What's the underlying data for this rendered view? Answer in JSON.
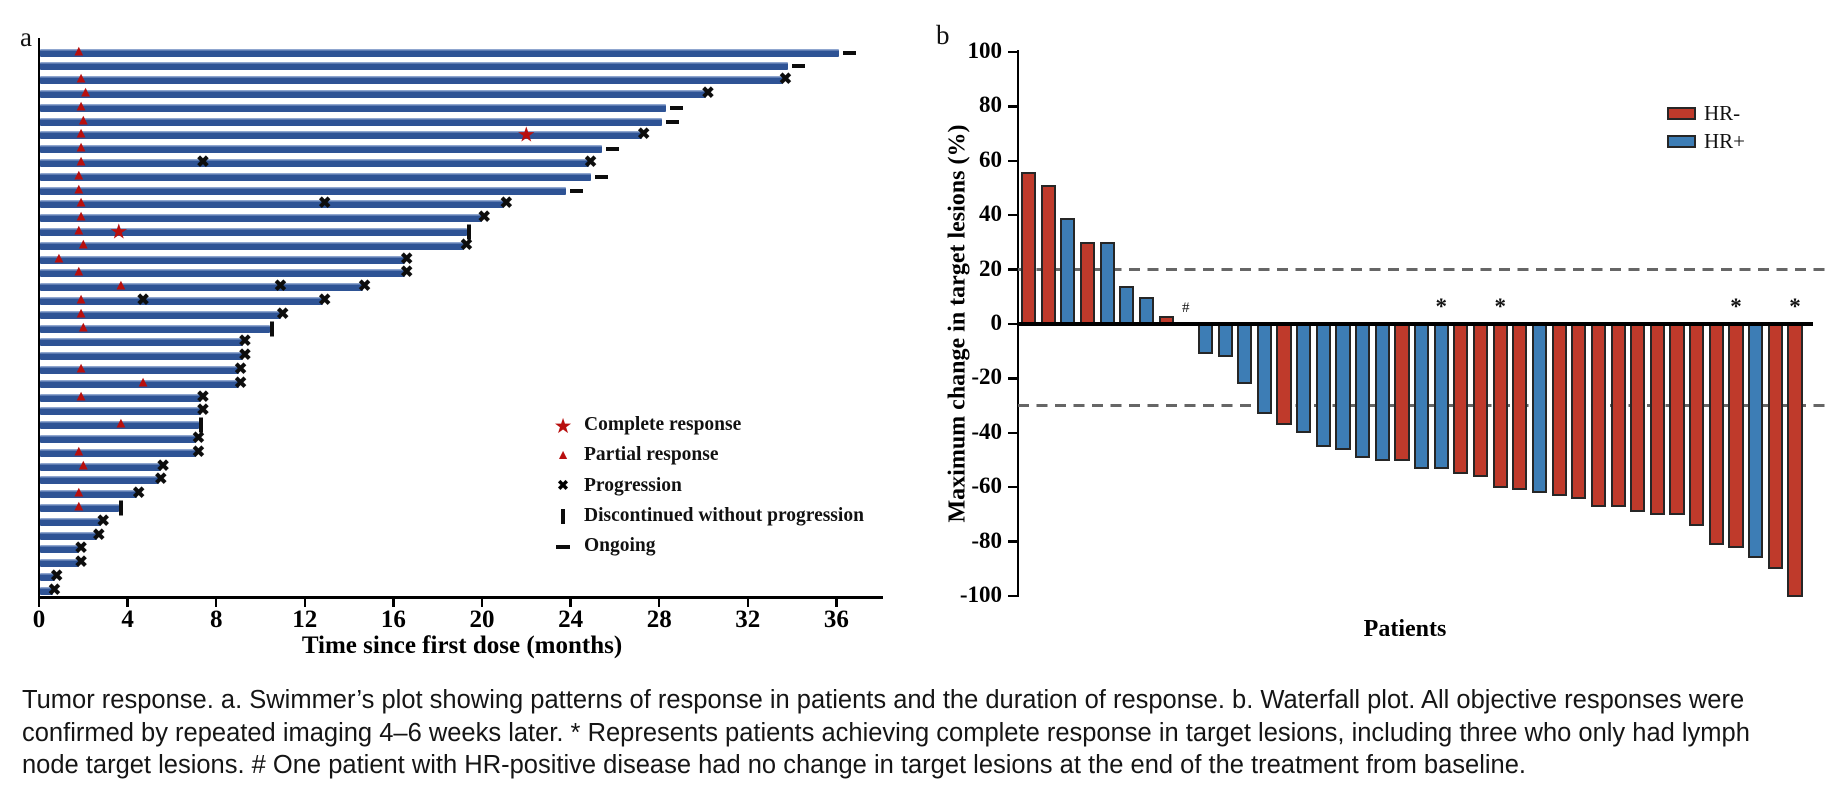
{
  "figure": {
    "panel_a_label": "a",
    "panel_b_label": "b"
  },
  "colors": {
    "swimmer_bar": "#2e5395",
    "swimmer_bar_highlight": "#8fa6cf",
    "marker_red": "#b80f0e",
    "hr_neg": "#bf3a2b",
    "hr_pos": "#3d7db5",
    "bar_outline": "#262626",
    "dash_line": "#666666",
    "axis": "#000000"
  },
  "chart_data": [
    {
      "type": "swimmer",
      "panel": "a",
      "xlabel": "Time since first dose (months)",
      "x_ticks": [
        0,
        4,
        8,
        12,
        16,
        20,
        24,
        28,
        32,
        36
      ],
      "xlim": [
        0,
        38
      ],
      "unit": "months",
      "legend": [
        {
          "icon": "star",
          "label": "Complete response"
        },
        {
          "icon": "triangle",
          "label": "Partial response"
        },
        {
          "icon": "x",
          "label": "Progression"
        },
        {
          "icon": "vbar",
          "label": "Discontinued without progression"
        },
        {
          "icon": "dash",
          "label": "Ongoing"
        }
      ],
      "patients": [
        {
          "end": 36.2,
          "end_marker": "ongoing",
          "pr": 1.8
        },
        {
          "end": 33.9,
          "end_marker": "ongoing"
        },
        {
          "end": 33.7,
          "end_marker": "progression",
          "pr": 1.9
        },
        {
          "end": 30.2,
          "end_marker": "progression",
          "pr": 2.1
        },
        {
          "end": 28.4,
          "end_marker": "ongoing",
          "pr": 1.9
        },
        {
          "end": 28.2,
          "end_marker": "ongoing",
          "pr": 2.0
        },
        {
          "end": 27.3,
          "end_marker": "progression",
          "pr": 1.9,
          "cr": 22.0
        },
        {
          "end": 25.5,
          "end_marker": "ongoing",
          "pr": 1.9
        },
        {
          "end": 24.9,
          "end_marker": "progression",
          "pr": 1.9,
          "prog_mid": 7.4
        },
        {
          "end": 25.0,
          "end_marker": "ongoing",
          "pr": 1.8
        },
        {
          "end": 23.9,
          "end_marker": "ongoing",
          "pr": 1.8
        },
        {
          "end": 21.1,
          "end_marker": "progression",
          "pr": 1.9,
          "prog_mid": 12.9
        },
        {
          "end": 20.1,
          "end_marker": "progression",
          "pr": 1.9
        },
        {
          "end": 19.4,
          "end_marker": "discontinued",
          "pr": 1.8,
          "cr": 3.6
        },
        {
          "end": 19.3,
          "end_marker": "progression",
          "pr": 2.0
        },
        {
          "end": 16.6,
          "end_marker": "progression",
          "pr": 0.9
        },
        {
          "end": 16.6,
          "end_marker": "progression",
          "pr": 1.8
        },
        {
          "end": 14.7,
          "end_marker": "progression",
          "pr": 3.7,
          "prog_mid": 10.9
        },
        {
          "end": 12.9,
          "end_marker": "progression",
          "pr": 1.9,
          "prog_mid": 4.7
        },
        {
          "end": 11.0,
          "end_marker": "progression",
          "pr": 1.9
        },
        {
          "end": 10.5,
          "end_marker": "discontinued",
          "pr": 2.0
        },
        {
          "end": 9.3,
          "end_marker": "progression"
        },
        {
          "end": 9.3,
          "end_marker": "progression"
        },
        {
          "end": 9.1,
          "end_marker": "progression",
          "pr": 1.9
        },
        {
          "end": 9.1,
          "end_marker": "progression",
          "pr": 4.7
        },
        {
          "end": 7.4,
          "end_marker": "progression",
          "pr": 1.9
        },
        {
          "end": 7.4,
          "end_marker": "progression"
        },
        {
          "end": 7.3,
          "end_marker": "discontinued",
          "pr": 3.7
        },
        {
          "end": 7.2,
          "end_marker": "progression"
        },
        {
          "end": 7.2,
          "end_marker": "progression",
          "pr": 1.8
        },
        {
          "end": 5.6,
          "end_marker": "progression",
          "pr": 2.0
        },
        {
          "end": 5.5,
          "end_marker": "progression"
        },
        {
          "end": 4.5,
          "end_marker": "progression",
          "pr": 1.8
        },
        {
          "end": 3.7,
          "end_marker": "discontinued",
          "pr": 1.8
        },
        {
          "end": 2.9,
          "end_marker": "progression"
        },
        {
          "end": 2.7,
          "end_marker": "progression"
        },
        {
          "end": 1.9,
          "end_marker": "progression"
        },
        {
          "end": 1.9,
          "end_marker": "progression"
        },
        {
          "end": 0.8,
          "end_marker": "progression"
        },
        {
          "end": 0.7,
          "end_marker": "progression"
        }
      ]
    },
    {
      "type": "bar",
      "panel": "b",
      "title": "",
      "ylabel": "Maximum change in target lesions (%)",
      "xlabel": "Patients",
      "y_ticks": [
        100,
        80,
        60,
        40,
        20,
        0,
        -20,
        -40,
        -60,
        -80,
        -100
      ],
      "ylim": [
        -100,
        100
      ],
      "reference_lines": [
        20,
        -30
      ],
      "legend": [
        {
          "label": "HR-",
          "color_key": "hr_neg"
        },
        {
          "label": "HR+",
          "color_key": "hr_pos"
        }
      ],
      "bars": [
        {
          "value": 56,
          "group": "HR-"
        },
        {
          "value": 51,
          "group": "HR-"
        },
        {
          "value": 39,
          "group": "HR+"
        },
        {
          "value": 30,
          "group": "HR-"
        },
        {
          "value": 30,
          "group": "HR+"
        },
        {
          "value": 14,
          "group": "HR+"
        },
        {
          "value": 10,
          "group": "HR+"
        },
        {
          "value": 3,
          "group": "HR-"
        },
        {
          "value": 0,
          "group": "HR+",
          "mark": "#"
        },
        {
          "value": -11,
          "group": "HR+"
        },
        {
          "value": -12,
          "group": "HR+"
        },
        {
          "value": -22,
          "group": "HR+"
        },
        {
          "value": -33,
          "group": "HR+"
        },
        {
          "value": -37,
          "group": "HR-"
        },
        {
          "value": -40,
          "group": "HR+"
        },
        {
          "value": -45,
          "group": "HR+"
        },
        {
          "value": -46,
          "group": "HR+"
        },
        {
          "value": -49,
          "group": "HR+"
        },
        {
          "value": -50,
          "group": "HR+"
        },
        {
          "value": -50,
          "group": "HR-"
        },
        {
          "value": -53,
          "group": "HR+"
        },
        {
          "value": -53,
          "group": "HR+",
          "mark": "*"
        },
        {
          "value": -55,
          "group": "HR-"
        },
        {
          "value": -56,
          "group": "HR-"
        },
        {
          "value": -60,
          "group": "HR-",
          "mark": "*"
        },
        {
          "value": -61,
          "group": "HR-"
        },
        {
          "value": -62,
          "group": "HR+"
        },
        {
          "value": -63,
          "group": "HR-"
        },
        {
          "value": -64,
          "group": "HR-"
        },
        {
          "value": -67,
          "group": "HR-"
        },
        {
          "value": -67,
          "group": "HR-"
        },
        {
          "value": -69,
          "group": "HR-"
        },
        {
          "value": -70,
          "group": "HR-"
        },
        {
          "value": -70,
          "group": "HR-"
        },
        {
          "value": -74,
          "group": "HR-"
        },
        {
          "value": -81,
          "group": "HR-"
        },
        {
          "value": -82,
          "group": "HR-",
          "mark": "*"
        },
        {
          "value": -86,
          "group": "HR+"
        },
        {
          "value": -90,
          "group": "HR-"
        },
        {
          "value": -100,
          "group": "HR-",
          "mark": "*"
        }
      ]
    }
  ],
  "caption": {
    "lines": [
      "Tumor response. a. Swimmer’s plot showing patterns of response in patients and the duration of response. b. Waterfall plot. All objective responses were",
      "confirmed by repeated imaging 4–6 weeks later. * Represents patients achieving complete response in target lesions, including three who only had lymph",
      "node target lesions. # One patient with HR-positive disease had no change in target lesions at the end of the treatment from baseline."
    ]
  }
}
